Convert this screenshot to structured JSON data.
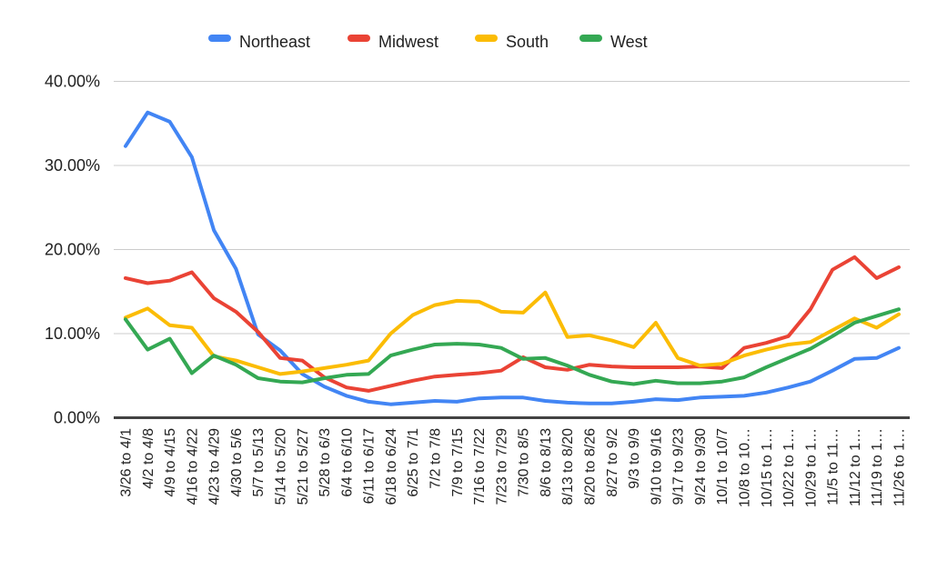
{
  "chart_data": {
    "type": "line",
    "title": "",
    "xlabel": "",
    "ylabel": "",
    "ylim": [
      0,
      40
    ],
    "grid": true,
    "legend_position": "top",
    "value_format": "percent",
    "yticks": [
      {
        "value": 0,
        "label": "0.00%"
      },
      {
        "value": 10,
        "label": "10.00%"
      },
      {
        "value": 20,
        "label": "20.00%"
      },
      {
        "value": 30,
        "label": "30.00%"
      },
      {
        "value": 40,
        "label": "40.00%"
      }
    ],
    "categories": [
      "3/26 to 4/1",
      "4/2 to 4/8",
      "4/9 to 4/15",
      "4/16 to 4/22",
      "4/23 to 4/29",
      "4/30 to 5/6",
      "5/7 to 5/13",
      "5/14 to 5/20",
      "5/21 to 5/27",
      "5/28 to 6/3",
      "6/4 to 6/10",
      "6/11 to 6/17",
      "6/18 to 6/24",
      "6/25 to 7/1",
      "7/2 to 7/8",
      "7/9 to 7/15",
      "7/16 to 7/22",
      "7/23 to 7/29",
      "7/30 to 8/5",
      "8/6 to 8/13",
      "8/13 to 8/20",
      "8/20 to 8/26",
      "8/27 to 9/2",
      "9/3 to 9/9",
      "9/10 to 9/16",
      "9/17 to 9/23",
      "9/24 to 9/30",
      "10/1 to 10/7",
      "10/8 to 10…",
      "10/15 to 1…",
      "10/22 to 1…",
      "10/29 to 1…",
      "11/5 to 11…",
      "11/12 to 1…",
      "11/19 to 1…",
      "11/26 to 1…"
    ],
    "series": [
      {
        "name": "Northeast",
        "color": "#4285F4",
        "values": [
          32.3,
          36.3,
          35.2,
          31.0,
          22.3,
          17.7,
          9.9,
          8.0,
          5.2,
          3.7,
          2.6,
          1.9,
          1.6,
          1.8,
          2.0,
          1.9,
          2.3,
          2.4,
          2.4,
          2.0,
          1.8,
          1.7,
          1.7,
          1.9,
          2.2,
          2.1,
          2.4,
          2.5,
          2.6,
          3.0,
          3.6,
          4.3,
          5.6,
          7.0,
          7.1,
          8.3
        ]
      },
      {
        "name": "Midwest",
        "color": "#EA4335",
        "values": [
          16.6,
          16.0,
          16.3,
          17.3,
          14.2,
          12.6,
          10.2,
          7.1,
          6.8,
          4.8,
          3.6,
          3.2,
          3.8,
          4.4,
          4.9,
          5.1,
          5.3,
          5.6,
          7.2,
          6.0,
          5.7,
          6.3,
          6.1,
          6.0,
          6.0,
          6.0,
          6.1,
          5.9,
          8.3,
          8.9,
          9.7,
          12.9,
          17.6,
          19.1,
          16.6,
          17.9
        ]
      },
      {
        "name": "South",
        "color": "#FBBC04",
        "values": [
          11.9,
          13.0,
          11.0,
          10.7,
          7.3,
          6.8,
          6.0,
          5.2,
          5.5,
          5.9,
          6.3,
          6.8,
          10.0,
          12.2,
          13.4,
          13.9,
          13.8,
          12.6,
          12.5,
          14.9,
          9.6,
          9.8,
          9.2,
          8.4,
          11.3,
          7.1,
          6.2,
          6.4,
          7.4,
          8.1,
          8.7,
          9.0,
          10.4,
          11.8,
          10.7,
          12.3
        ]
      },
      {
        "name": "West",
        "color": "#34A853",
        "values": [
          11.7,
          8.1,
          9.4,
          5.3,
          7.4,
          6.3,
          4.7,
          4.3,
          4.2,
          4.7,
          5.1,
          5.2,
          7.4,
          8.1,
          8.7,
          8.8,
          8.7,
          8.3,
          7.0,
          7.1,
          6.2,
          5.1,
          4.3,
          4.0,
          4.4,
          4.1,
          4.1,
          4.3,
          4.8,
          6.0,
          7.1,
          8.2,
          9.7,
          11.3,
          12.1,
          12.9
        ]
      }
    ]
  },
  "colors": {
    "background": "#ffffff",
    "gridline": "#cccccc",
    "axis": "#424242",
    "label": "#212121"
  }
}
